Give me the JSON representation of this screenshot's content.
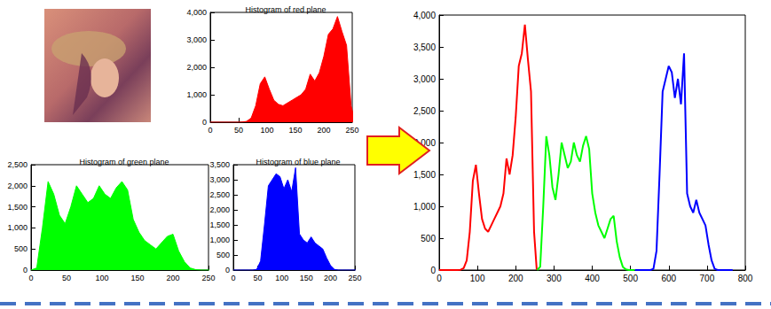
{
  "chart_data": [
    {
      "type": "area",
      "title": "Histogram of red plane",
      "grid": false,
      "xlim": [
        0,
        250
      ],
      "xticks": [
        0,
        50,
        100,
        150,
        200,
        250
      ],
      "ylim": [
        0,
        4000
      ],
      "yticks": [
        0,
        1000,
        2000,
        3000,
        4000
      ],
      "x": [
        0,
        8,
        16,
        24,
        32,
        40,
        48,
        56,
        64,
        72,
        80,
        88,
        96,
        104,
        112,
        120,
        128,
        136,
        144,
        152,
        160,
        168,
        176,
        184,
        192,
        200,
        208,
        216,
        224,
        232,
        240,
        248,
        255
      ],
      "series": [
        {
          "color": "#ff0000",
          "values": [
            0,
            0,
            0,
            0,
            0,
            0,
            0,
            5,
            30,
            150,
            600,
            1400,
            1650,
            1200,
            800,
            650,
            600,
            700,
            800,
            900,
            1000,
            1200,
            1750,
            1500,
            1800,
            2400,
            3200,
            3400,
            3850,
            3300,
            2800,
            600,
            0
          ]
        }
      ]
    },
    {
      "type": "area",
      "title": "Histogram of green plane",
      "grid": false,
      "xlim": [
        0,
        250
      ],
      "xticks": [
        0,
        50,
        100,
        150,
        200,
        250
      ],
      "ylim": [
        0,
        2500
      ],
      "yticks": [
        0,
        500,
        1000,
        1500,
        2000,
        2500
      ],
      "x": [
        0,
        8,
        16,
        24,
        32,
        40,
        48,
        56,
        64,
        72,
        80,
        88,
        96,
        104,
        112,
        120,
        128,
        136,
        144,
        152,
        160,
        168,
        176,
        184,
        192,
        200,
        208,
        216,
        224,
        232,
        240,
        248,
        255
      ],
      "series": [
        {
          "color": "#00ff00",
          "values": [
            0,
            50,
            1000,
            2100,
            1800,
            1300,
            1100,
            1500,
            2000,
            1800,
            1600,
            1700,
            2000,
            1800,
            1700,
            1950,
            2100,
            1900,
            1200,
            900,
            700,
            600,
            500,
            650,
            800,
            850,
            450,
            200,
            50,
            10,
            0,
            0,
            0
          ]
        }
      ]
    },
    {
      "type": "area",
      "title": "Histogram of blue plane",
      "grid": false,
      "xlim": [
        0,
        250
      ],
      "xticks": [
        0,
        50,
        100,
        150,
        200,
        250
      ],
      "ylim": [
        0,
        3500
      ],
      "yticks": [
        0,
        500,
        1000,
        1500,
        2000,
        2500,
        3000,
        3500
      ],
      "x": [
        0,
        8,
        16,
        24,
        32,
        40,
        48,
        56,
        64,
        72,
        80,
        88,
        96,
        104,
        112,
        120,
        128,
        136,
        144,
        152,
        160,
        168,
        176,
        184,
        192,
        200,
        208,
        216,
        224,
        232,
        240,
        248,
        255
      ],
      "series": [
        {
          "color": "#0000ff",
          "values": [
            0,
            0,
            0,
            0,
            0,
            0,
            20,
            300,
            1500,
            2800,
            3000,
            3200,
            3100,
            2700,
            3000,
            2600,
            3400,
            1200,
            1000,
            900,
            1100,
            900,
            800,
            700,
            400,
            150,
            20,
            0,
            0,
            0,
            0,
            0,
            0
          ]
        }
      ]
    },
    {
      "type": "line",
      "grid": false,
      "xlim": [
        0,
        800
      ],
      "xticks": [
        0,
        100,
        200,
        300,
        400,
        500,
        600,
        700,
        800
      ],
      "ylim": [
        0,
        4000
      ],
      "yticks": [
        0,
        500,
        1000,
        1500,
        2000,
        2500,
        3000,
        3500,
        4000
      ],
      "series": [
        {
          "color": "#ff0000",
          "x": [
            0,
            8,
            16,
            24,
            32,
            40,
            48,
            56,
            64,
            72,
            80,
            88,
            96,
            104,
            112,
            120,
            128,
            136,
            144,
            152,
            160,
            168,
            176,
            184,
            192,
            200,
            208,
            216,
            224,
            232,
            240,
            248,
            255
          ],
          "values": [
            0,
            0,
            0,
            0,
            0,
            0,
            0,
            5,
            30,
            150,
            600,
            1400,
            1650,
            1200,
            800,
            650,
            600,
            700,
            800,
            900,
            1000,
            1200,
            1750,
            1500,
            1800,
            2400,
            3200,
            3400,
            3850,
            3300,
            2800,
            600,
            0
          ]
        },
        {
          "color": "#00ff00",
          "x": [
            256,
            264,
            272,
            280,
            288,
            296,
            304,
            312,
            320,
            328,
            336,
            344,
            352,
            360,
            368,
            376,
            384,
            392,
            400,
            408,
            416,
            424,
            432,
            440,
            448,
            456,
            464,
            472,
            480,
            488,
            496,
            504,
            511
          ],
          "values": [
            0,
            50,
            1000,
            2100,
            1800,
            1300,
            1100,
            1500,
            2000,
            1800,
            1600,
            1700,
            2000,
            1800,
            1700,
            1950,
            2100,
            1900,
            1200,
            900,
            700,
            600,
            500,
            650,
            800,
            850,
            450,
            200,
            50,
            10,
            0,
            0,
            0
          ]
        },
        {
          "color": "#0000ff",
          "x": [
            512,
            520,
            528,
            536,
            544,
            552,
            560,
            568,
            576,
            584,
            592,
            600,
            608,
            616,
            624,
            632,
            640,
            648,
            656,
            664,
            672,
            680,
            688,
            696,
            704,
            712,
            720,
            728,
            736,
            744,
            752,
            760,
            767
          ],
          "values": [
            0,
            0,
            0,
            0,
            0,
            0,
            20,
            300,
            1500,
            2800,
            3000,
            3200,
            3100,
            2700,
            3000,
            2600,
            3400,
            1200,
            1000,
            900,
            1100,
            900,
            800,
            700,
            400,
            150,
            20,
            0,
            0,
            0,
            0,
            0,
            0
          ]
        }
      ]
    }
  ]
}
